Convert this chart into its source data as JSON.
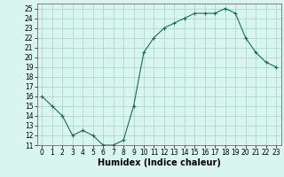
{
  "x": [
    0,
    1,
    2,
    3,
    4,
    5,
    6,
    7,
    8,
    9,
    10,
    11,
    12,
    13,
    14,
    15,
    16,
    17,
    18,
    19,
    20,
    21,
    22,
    23
  ],
  "y": [
    16,
    15,
    14,
    12,
    12.5,
    12,
    11,
    11,
    11.5,
    15,
    20.5,
    22,
    23,
    23.5,
    24,
    24.5,
    24.5,
    24.5,
    25,
    24.5,
    22,
    20.5,
    19.5,
    19
  ],
  "line_color": "#1a6b5a",
  "marker": "+",
  "marker_size": 3,
  "marker_linewidth": 0.8,
  "bg_color": "#d8f5f0",
  "grid_color": "#a8cfc8",
  "xlabel": "Humidex (Indice chaleur)",
  "xlim": [
    -0.5,
    23.5
  ],
  "ylim": [
    11,
    25.5
  ],
  "yticks": [
    11,
    12,
    13,
    14,
    15,
    16,
    17,
    18,
    19,
    20,
    21,
    22,
    23,
    24,
    25
  ],
  "xticks": [
    0,
    1,
    2,
    3,
    4,
    5,
    6,
    7,
    8,
    9,
    10,
    11,
    12,
    13,
    14,
    15,
    16,
    17,
    18,
    19,
    20,
    21,
    22,
    23
  ],
  "tick_fontsize": 5.5,
  "xlabel_fontsize": 7.0,
  "line_width": 0.8
}
